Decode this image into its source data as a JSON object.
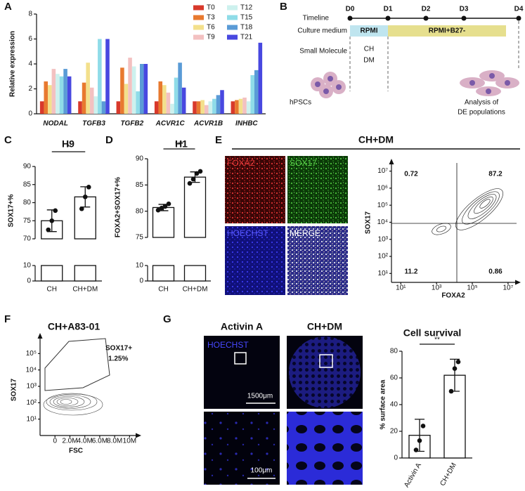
{
  "chart_data": [
    {
      "type": "bar",
      "panel": "A",
      "ylabel": "Relative expression",
      "categories": [
        "NODAL",
        "TGFB3",
        "TGFB2",
        "ACVR1C",
        "ACVR1B",
        "INHBC"
      ],
      "series": [
        {
          "name": "T0",
          "color": "#d8392b",
          "values": [
            1.0,
            1.0,
            1.0,
            1.0,
            1.0,
            1.0
          ]
        },
        {
          "name": "T3",
          "color": "#e8792f",
          "values": [
            2.6,
            2.5,
            3.7,
            2.6,
            1.0,
            1.1
          ]
        },
        {
          "name": "T6",
          "color": "#f3e08c",
          "values": [
            2.3,
            4.1,
            2.4,
            2.3,
            1.1,
            1.2
          ]
        },
        {
          "name": "T9",
          "color": "#f3c1c1",
          "values": [
            3.6,
            2.1,
            4.5,
            1.7,
            0.7,
            1.3
          ]
        },
        {
          "name": "T12",
          "color": "#cdf1ee",
          "values": [
            3.2,
            1.4,
            3.8,
            0.8,
            1.0,
            1.0
          ]
        },
        {
          "name": "T15",
          "color": "#8fdce8",
          "values": [
            3.0,
            6.0,
            1.8,
            2.9,
            1.2,
            3.1
          ]
        },
        {
          "name": "T18",
          "color": "#5a9bd6",
          "values": [
            3.6,
            1.0,
            4.0,
            4.1,
            1.5,
            3.5
          ]
        },
        {
          "name": "T21",
          "color": "#4848e0",
          "values": [
            3.0,
            6.0,
            4.0,
            2.1,
            1.9,
            5.7
          ]
        }
      ],
      "ylim": [
        0,
        8
      ],
      "yticks": [
        0,
        2,
        4,
        6,
        8
      ]
    },
    {
      "type": "bar",
      "panel": "C",
      "title": "H9",
      "ylabel": "SOX17+%",
      "categories": [
        "CH",
        "CH+DM"
      ],
      "values": [
        75,
        81.6
      ],
      "errors": [
        3,
        2.8
      ],
      "points": [
        [
          72.5,
          75,
          77.8
        ],
        [
          78.3,
          81.6,
          84.3
        ]
      ],
      "color": "#ffffff",
      "ylim": [
        70,
        90
      ],
      "yticks": [
        70,
        75,
        80,
        85,
        90
      ],
      "ylim_lower": [
        0,
        10
      ],
      "yticks_lower": [
        0,
        10
      ],
      "significance": "*"
    },
    {
      "type": "bar",
      "panel": "D",
      "title": "H1",
      "ylabel": "FOXA2+SOX17+%",
      "categories": [
        "CH",
        "CH+DM"
      ],
      "values": [
        80.7,
        86.5
      ],
      "errors": [
        0.6,
        1.0
      ],
      "points": [
        [
          80.2,
          80.6,
          80.9,
          81.4
        ],
        [
          85.3,
          86.1,
          87.2,
          87.6
        ]
      ],
      "color": "#ffffff",
      "ylim": [
        75,
        90
      ],
      "yticks": [
        75,
        80,
        85,
        90
      ],
      "ylim_lower": [
        0,
        10
      ],
      "yticks_lower": [
        0,
        10
      ],
      "significance": "***"
    },
    {
      "type": "contour",
      "xlabel": "FOXA2",
      "ylabel": "SOX17",
      "xscale": "log",
      "yscale": "log",
      "xlim": [
        3,
        30000000
      ],
      "ylim": [
        3,
        30000000
      ],
      "xticks": [
        {
          "value": 10,
          "label": "10¹"
        },
        {
          "value": 1000,
          "label": "10³"
        },
        {
          "value": 100000,
          "label": "10⁵"
        },
        {
          "value": 10000000,
          "label": "10⁷"
        }
      ],
      "yticks": [
        {
          "value": 10,
          "label": "10¹"
        },
        {
          "value": 100,
          "label": "10²"
        },
        {
          "value": 1000,
          "label": "10³"
        },
        {
          "value": 10000,
          "label": "10⁴"
        },
        {
          "value": 100000,
          "label": "10⁵"
        },
        {
          "value": 1000000,
          "label": "10⁶"
        },
        {
          "value": 10000000,
          "label": "10⁷"
        }
      ],
      "quadrants": [
        0.72,
        87.2,
        11.2,
        0.86
      ]
    },
    {
      "type": "contour",
      "panel": "F",
      "title": "CH+A83-01",
      "xlabel": "FSC",
      "ylabel": "SOX17",
      "xscale": "linear",
      "yscale": "log",
      "xlim": [
        -2000000,
        11000000
      ],
      "ylim": [
        1,
        1000000
      ],
      "xticks": [
        0,
        {
          "value": 2000000,
          "label": "2.0M"
        },
        {
          "value": 4000000,
          "label": "4.0M"
        },
        {
          "value": 6000000,
          "label": "6.0M"
        },
        {
          "value": 8000000,
          "label": "8.0M"
        },
        {
          "value": 10000000,
          "label": "10M"
        }
      ],
      "yticks": [
        {
          "value": 10,
          "label": "10¹"
        },
        {
          "value": 100,
          "label": "10²"
        },
        {
          "value": 1000,
          "label": "10³"
        },
        {
          "value": 10000,
          "label": "10⁴"
        },
        {
          "value": 100000,
          "label": "10⁵"
        }
      ],
      "annotations": [
        "SOX17+"
      ],
      "values": [
        1.25
      ],
      "value_labels": [
        "1.25%"
      ]
    },
    {
      "type": "bar",
      "title": "Cell survival",
      "ylabel": "% surface area",
      "categories": [
        "Activin A",
        "CH+DM"
      ],
      "values": [
        17,
        62
      ],
      "errors": [
        12,
        12
      ],
      "points": [
        [
          6,
          13,
          24
        ],
        [
          50,
          67,
          72
        ]
      ],
      "color": "#ffffff",
      "ylim": [
        0,
        80
      ],
      "yticks": [
        0,
        20,
        40,
        60,
        80
      ],
      "significance": "**"
    }
  ],
  "diagram": {
    "panel": "B",
    "rows": [
      "Timeline",
      "Culture medium",
      "Small Molecule"
    ],
    "days": [
      "D0",
      "D1",
      "D2",
      "D3",
      "D4"
    ],
    "media": [
      "RPMI",
      "RPMI+B27-"
    ],
    "molecules": [
      "CH",
      "DM"
    ],
    "start": "hPSCs",
    "end": [
      "Analysis of",
      "DE populations"
    ]
  },
  "images": {
    "E": {
      "panel": "E",
      "title": "CH+DM",
      "channels": [
        "FOXA2",
        "SOX17",
        "HOECHST",
        "MERGE"
      ]
    },
    "G": {
      "panel": "G",
      "columns": [
        "Activin A",
        "CH+DM"
      ],
      "stain": "HOECHST",
      "scale_bars": [
        "1500μm",
        "100μm"
      ]
    }
  }
}
